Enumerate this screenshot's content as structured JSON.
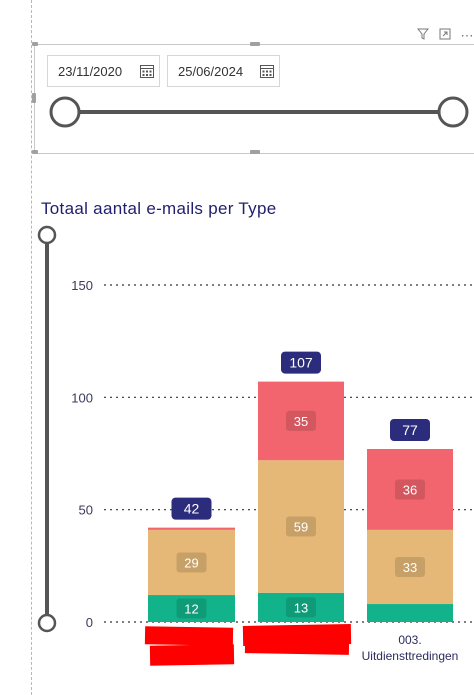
{
  "visual_header": {
    "filter_icon": "filter-icon",
    "focus_icon": "focus-mode-icon",
    "more_icon": "more-options-icon",
    "more_glyph": "⋯"
  },
  "date_slicer": {
    "start_date": "23/11/2020",
    "end_date": "25/06/2024",
    "range_start": 0.0,
    "range_end": 1.0
  },
  "chart_data": {
    "type": "bar",
    "stacked": true,
    "title": "Totaal aantal e-mails per Type",
    "ylim": [
      0,
      150
    ],
    "yticks": [
      "0",
      "50",
      "100",
      "150"
    ],
    "grid": true,
    "categories": [
      "",
      "",
      "003. Uitdiensttredingen"
    ],
    "category_labels_line1": [
      "",
      "",
      "003."
    ],
    "category_labels_line2": [
      "",
      "",
      "Uitdiensttredingen"
    ],
    "totals": [
      42,
      107,
      77
    ],
    "series": [
      {
        "color": "#12b38a",
        "values": [
          12,
          13,
          8
        ],
        "labels": [
          "12",
          "13",
          ""
        ]
      },
      {
        "color": "#e5b878",
        "values": [
          29,
          59,
          33
        ],
        "labels": [
          "29",
          "59",
          "33"
        ]
      },
      {
        "color": "#f2646e",
        "values": [
          1,
          35,
          36
        ],
        "labels": [
          "",
          "35",
          "36"
        ]
      }
    ],
    "total_label_color": "#2b2c7c",
    "vertical_zoom_slider": {
      "range_start": 0.0,
      "range_end": 1.0
    }
  }
}
